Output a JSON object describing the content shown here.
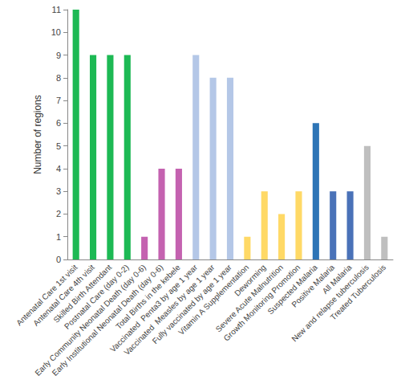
{
  "chart_data": {
    "type": "bar",
    "y_label": "Number of regions",
    "categories": [
      "Antenatal Care 1st visit",
      "Antenatal Care 4th visit",
      "Skilled Birth Attendant",
      "Postnatal Care (day 0-2)",
      "Early Community Neonatal Death (day 0-6)",
      "Early Institutional Neonatal Death (day 0-6)",
      "Total Births in the kebele",
      "Vaccinated  Penta3 by age 1 year",
      "Vaccinated  Measles by age 1 year",
      "Fully vaccinated by age 1 year",
      "Vitamin A Supplementation",
      "Deworming",
      "Severe Acute Malnutrition",
      "Growth Monitoring Promotion",
      "Suspected Malaria",
      "Positive Malaria",
      "All Malaria",
      "New and relapse tuberculosis",
      "Treated Tuberculosis"
    ],
    "values": [
      11,
      9,
      9,
      9,
      1,
      4,
      4,
      9,
      8,
      8,
      1,
      3,
      2,
      3,
      6,
      3,
      3,
      5,
      1
    ],
    "colors": [
      "#1db954",
      "#1db954",
      "#1db954",
      "#1db954",
      "#c462b0",
      "#c462b0",
      "#c462b0",
      "#b4c7e7",
      "#b4c7e7",
      "#b4c7e7",
      "#ffd966",
      "#ffd966",
      "#ffd966",
      "#ffd966",
      "#2e75b6",
      "#4a72b8",
      "#4a72b8",
      "#bfbfbf",
      "#bfbfbf"
    ],
    "ylim": [
      0,
      11
    ],
    "yticks": [
      0,
      1,
      2,
      3,
      4,
      5,
      6,
      7,
      8,
      9,
      10,
      11
    ],
    "grid": false
  }
}
